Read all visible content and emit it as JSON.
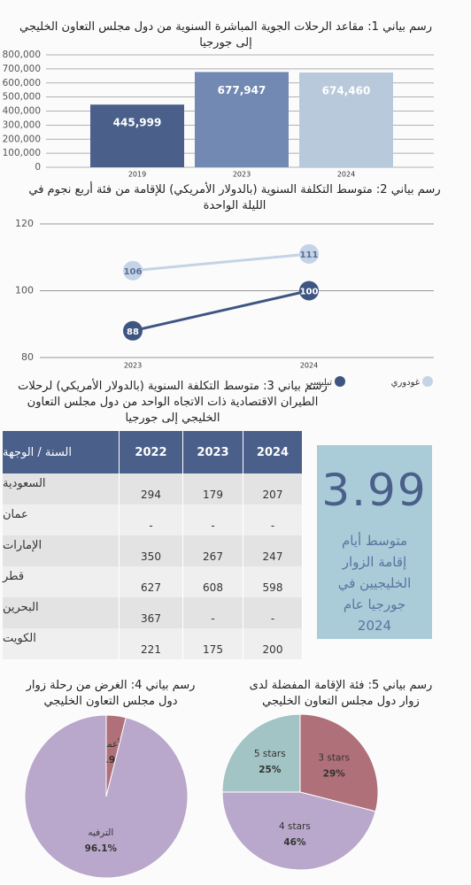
{
  "chart_data": [
    {
      "type": "bar",
      "title": "رسم بياني 1: مقاعد الرحلات الجوية المباشرة السنوية من دول مجلس التعاون الخليجي إلى جورجيا",
      "categories": [
        "2019",
        "2023",
        "2024"
      ],
      "values": [
        445999,
        677947,
        674460
      ],
      "value_labels": [
        "445,999",
        "677,947",
        "674,460"
      ],
      "colors": [
        "#4a5f8a",
        "#7189b3",
        "#b9c9dc"
      ],
      "ylim": [
        0,
        800000
      ],
      "yticks": [
        0,
        {
          "value": 100000,
          "label": "100,000"
        },
        {
          "value": 200000,
          "label": "200,000"
        },
        {
          "value": 300000,
          "label": "300,000"
        },
        {
          "value": 400000,
          "label": "400,000"
        },
        {
          "value": 500000,
          "label": "500,000"
        },
        {
          "value": 600000,
          "label": "600,000"
        },
        {
          "value": 700000,
          "label": "700,000"
        },
        {
          "value": 800000,
          "label": "800,000"
        }
      ],
      "grid": true
    },
    {
      "type": "line",
      "title": "رسم بياني 2: متوسط التكلفة السنوية (بالدولار الأمريكي) للإقامة من فئة أربع نجوم في الليلة الواحدة",
      "categories": [
        "2023",
        "2024"
      ],
      "series": [
        {
          "name": "تبليسي",
          "color": "#3f5581",
          "values": [
            88,
            100
          ]
        },
        {
          "name": "غودوري",
          "color": "#c5d3e6",
          "values": [
            106,
            111
          ]
        }
      ],
      "ylim": [
        80,
        120
      ],
      "yticks": [
        80,
        100,
        120
      ],
      "grid": true,
      "legend": "bottom"
    },
    {
      "type": "pie",
      "title": "رسم بياني 4: الغرض من رحلة زوار دول مجلس التعاون الخليجي",
      "categories": [
        "الأعمال",
        "الترفيه"
      ],
      "values": [
        3.9,
        96.1
      ],
      "value_labels": [
        "3.9%",
        "96.1%"
      ],
      "colors": [
        "#b0707a",
        "#b9a8cc"
      ]
    },
    {
      "type": "pie",
      "title": "رسم بياني 5: فئة الإقامة المفضلة لدى زوار دول مجلس التعاون الخليجي",
      "categories": [
        "3 stars",
        "4 stars",
        "5 stars"
      ],
      "values": [
        29,
        46,
        25
      ],
      "value_labels": [
        "29%",
        "46%",
        "25%"
      ],
      "colors": [
        "#b0707a",
        "#b9a8cc",
        "#a3c4c4"
      ]
    }
  ],
  "table": {
    "title": "رسم بياني 3: متوسط التكلفة السنوية (بالدولار الأمريكي) لرحلات الطيران الاقتصادية ذات الاتجاه الواحد من دول مجلس التعاون الخليجي إلى جورجيا",
    "header": [
      "السنة / الوجهة",
      "2022",
      "2023",
      "2024"
    ],
    "rows": [
      [
        "السعودية",
        294,
        179,
        207
      ],
      [
        "عمان",
        "-",
        "-",
        "-"
      ],
      [
        "الإمارات",
        350,
        267,
        247
      ],
      [
        "قطر",
        627,
        608,
        598
      ],
      [
        "البحرين",
        367,
        "-",
        "-"
      ],
      [
        "الكويت",
        221,
        175,
        200
      ]
    ]
  },
  "stat": {
    "value": 3.99,
    "label": "متوسط أيام إقامة الزوار الخليجيين في جورجيا عام 2024"
  }
}
